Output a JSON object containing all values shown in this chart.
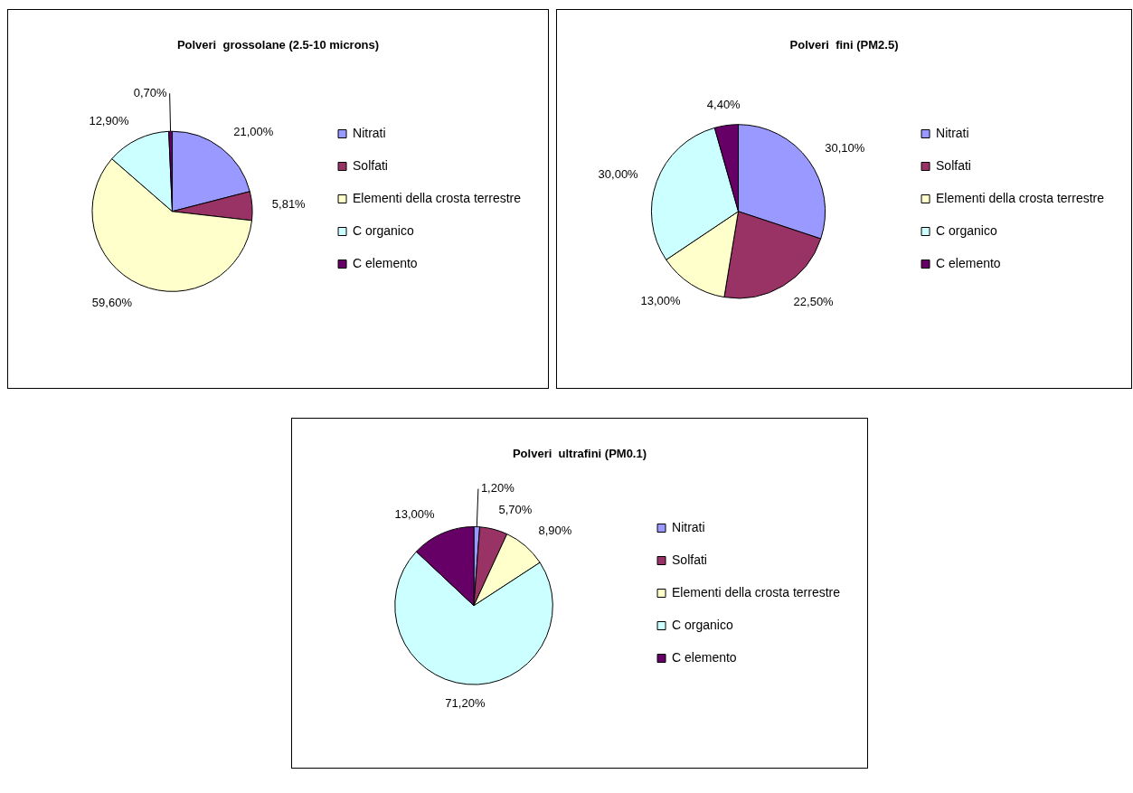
{
  "chart_data": [
    {
      "type": "pie",
      "title": "Polveri  grossolane (2.5-10 microns)",
      "legend": "right",
      "categories": [
        "Nitrati",
        "Solfati",
        "Elementi della crosta terrestre",
        "C organico",
        "C elemento"
      ],
      "values": [
        21.0,
        5.81,
        59.6,
        12.9,
        0.7
      ],
      "colors": [
        "#9999ff",
        "#993366",
        "#ffffcc",
        "#ccffff",
        "#660066"
      ],
      "value_labels": [
        "21,00%",
        "5,81%",
        "59,60%",
        "12,90%",
        "0,70%"
      ]
    },
    {
      "type": "pie",
      "title": "Polveri  fini (PM2.5)",
      "legend": "right",
      "categories": [
        "Nitrati",
        "Solfati",
        "Elementi della crosta terrestre",
        "C organico",
        "C elemento"
      ],
      "values": [
        30.1,
        22.5,
        13.0,
        30.0,
        4.4
      ],
      "colors": [
        "#9999ff",
        "#993366",
        "#ffffcc",
        "#ccffff",
        "#660066"
      ],
      "value_labels": [
        "30,10%",
        "22,50%",
        "13,00%",
        "30,00%",
        "4,40%"
      ]
    },
    {
      "type": "pie",
      "title": "Polveri  ultrafini (PM0.1)",
      "legend": "right",
      "categories": [
        "Nitrati",
        "Solfati",
        "Elementi della crosta terrestre",
        "C organico",
        "C elemento"
      ],
      "values": [
        1.2,
        5.7,
        8.9,
        71.2,
        13.0
      ],
      "colors": [
        "#9999ff",
        "#993366",
        "#ffffcc",
        "#ccffff",
        "#660066"
      ],
      "value_labels": [
        "1,20%",
        "5,70%",
        "8,90%",
        "71,20%",
        "13,00%"
      ]
    }
  ]
}
